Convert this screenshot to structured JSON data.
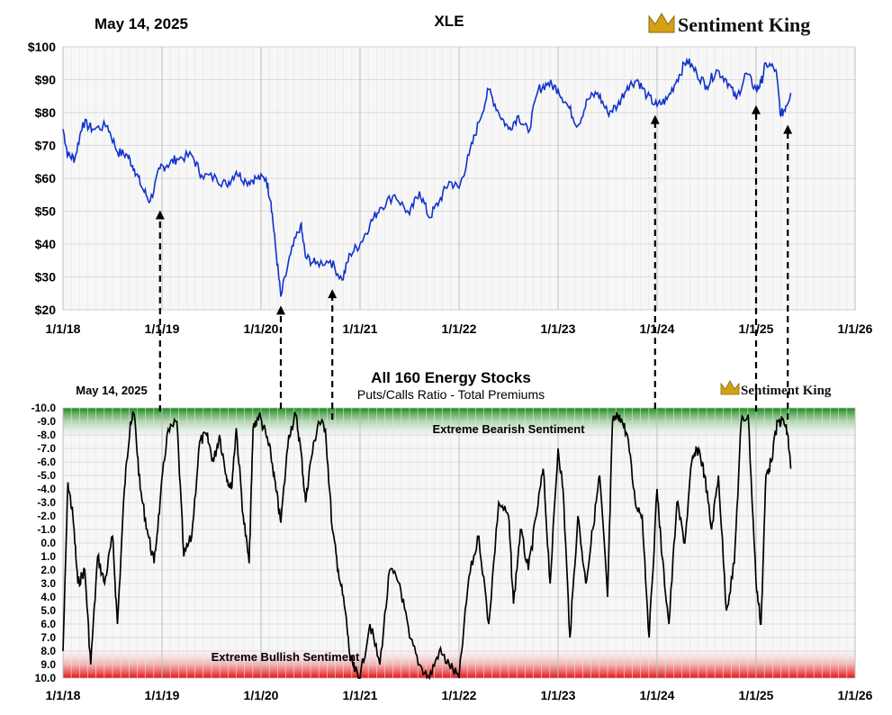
{
  "top_header": {
    "date": "May 14, 2025",
    "ticker": "XLE",
    "brand": "Sentiment King"
  },
  "bottom_header": {
    "date": "May 14, 2025",
    "title": "All 160 Energy Stocks",
    "subtitle": "Puts/Calls Ratio - Total Premiums",
    "brand": "Sentiment King",
    "zone_bearish": "Extreme Bearish Sentiment",
    "zone_bullish": "Extreme Bullish Sentiment"
  },
  "colors": {
    "price_line": "#1133cc",
    "ratio_line": "#000000",
    "bearish_zone": "#1e8c1e",
    "bullish_zone": "#e01010",
    "brand_crown": "#d4a017"
  },
  "chart_data": [
    {
      "type": "line",
      "x_tick_labels": [
        "1/1/18",
        "1/1/19",
        "1/1/20",
        "1/1/21",
        "1/1/22",
        "1/1/23",
        "1/1/24",
        "1/1/25",
        "1/1/26"
      ],
      "y_tick_labels": [
        "$100",
        "$90",
        "$80",
        "$70",
        "$60",
        "$50",
        "$40",
        "$30",
        "$20"
      ],
      "ylim": [
        20,
        100
      ],
      "xlim": [
        2018.0,
        2026.0
      ],
      "grid": true,
      "series": [
        {
          "x": [
            2018.0,
            2018.05,
            2018.12,
            2018.2,
            2018.3,
            2018.45,
            2018.55,
            2018.65,
            2018.72,
            2018.8,
            2018.88,
            2018.98,
            2019.05,
            2019.15,
            2019.3,
            2019.4,
            2019.55,
            2019.65,
            2019.75,
            2019.85,
            2019.95,
            2020.05,
            2020.1,
            2020.15,
            2020.2,
            2020.3,
            2020.4,
            2020.45,
            2020.55,
            2020.7,
            2020.82,
            2020.9,
            2021.0,
            2021.1,
            2021.2,
            2021.35,
            2021.5,
            2021.6,
            2021.7,
            2021.8,
            2021.9,
            2022.0,
            2022.1,
            2022.2,
            2022.3,
            2022.4,
            2022.5,
            2022.6,
            2022.7,
            2022.8,
            2022.9,
            2023.0,
            2023.1,
            2023.2,
            2023.3,
            2023.4,
            2023.5,
            2023.6,
            2023.7,
            2023.8,
            2023.9,
            2024.0,
            2024.1,
            2024.2,
            2024.3,
            2024.4,
            2024.5,
            2024.6,
            2024.7,
            2024.8,
            2024.9,
            2025.0,
            2025.05,
            2025.1,
            2025.2,
            2025.25,
            2025.3,
            2025.35
          ],
          "y": [
            75,
            67,
            66,
            77,
            75,
            76,
            68,
            67,
            63,
            57,
            53,
            63,
            64,
            66,
            67,
            61,
            60,
            58,
            62,
            59,
            60,
            60,
            53,
            38,
            24,
            37,
            46,
            36,
            34,
            35,
            29,
            37,
            40,
            46,
            51,
            55,
            49,
            56,
            48,
            53,
            59,
            57,
            67,
            77,
            87,
            80,
            75,
            79,
            74,
            87,
            89,
            87,
            82,
            76,
            84,
            86,
            80,
            82,
            88,
            90,
            85,
            82,
            84,
            90,
            96,
            92,
            88,
            93,
            90,
            84,
            92,
            87,
            89,
            95,
            93,
            79,
            82,
            86
          ]
        }
      ]
    },
    {
      "type": "line",
      "x_tick_labels": [
        "1/1/18",
        "1/1/19",
        "1/1/20",
        "1/1/21",
        "1/1/22",
        "1/1/23",
        "1/1/24",
        "1/1/25",
        "1/1/26"
      ],
      "y_tick_labels": [
        "-10.0",
        "-9.0",
        "-8.0",
        "-7.0",
        "-6.0",
        "-5.0",
        "-4.0",
        "-3.0",
        "-2.0",
        "-1.0",
        "0.0",
        "1.0",
        "2.0",
        "3.0",
        "4.0",
        "5.0",
        "6.0",
        "7.0",
        "8.0",
        "9.0",
        "10.0"
      ],
      "ylim": [
        -10,
        10
      ],
      "xlim": [
        2018.0,
        2026.0
      ],
      "grid": true,
      "series": [
        {
          "x": [
            2018.0,
            2018.05,
            2018.1,
            2018.15,
            2018.22,
            2018.28,
            2018.35,
            2018.42,
            2018.5,
            2018.55,
            2018.62,
            2018.68,
            2018.72,
            2018.78,
            2018.85,
            2018.92,
            2018.98,
            2019.05,
            2019.15,
            2019.22,
            2019.3,
            2019.38,
            2019.45,
            2019.52,
            2019.58,
            2019.65,
            2019.7,
            2019.75,
            2019.82,
            2019.88,
            2019.92,
            2019.98,
            2020.05,
            2020.1,
            2020.15,
            2020.2,
            2020.28,
            2020.35,
            2020.4,
            2020.45,
            2020.5,
            2020.58,
            2020.65,
            2020.72,
            2020.78,
            2020.85,
            2020.9,
            2020.95,
            2021.0,
            2021.1,
            2021.2,
            2021.3,
            2021.4,
            2021.5,
            2021.6,
            2021.7,
            2021.8,
            2021.9,
            2022.0,
            2022.1,
            2022.2,
            2022.3,
            2022.4,
            2022.5,
            2022.55,
            2022.62,
            2022.7,
            2022.78,
            2022.85,
            2022.92,
            2023.0,
            2023.05,
            2023.12,
            2023.2,
            2023.28,
            2023.35,
            2023.42,
            2023.5,
            2023.55,
            2023.62,
            2023.7,
            2023.78,
            2023.85,
            2023.92,
            2024.0,
            2024.05,
            2024.12,
            2024.2,
            2024.28,
            2024.35,
            2024.42,
            2024.48,
            2024.55,
            2024.62,
            2024.7,
            2024.78,
            2024.85,
            2024.92,
            2025.0,
            2025.05,
            2025.1,
            2025.15,
            2025.22,
            2025.28,
            2025.32,
            2025.35
          ],
          "y": [
            8,
            -4.5,
            -2,
            3,
            2,
            9,
            1,
            3,
            -0.5,
            6,
            -4,
            -9,
            -9.5,
            -4,
            -1,
            1.5,
            -3,
            -8,
            -9,
            1,
            -0.5,
            -7.5,
            -8,
            -6,
            -8,
            -5,
            -4,
            -8.5,
            -2,
            1.5,
            -8.5,
            -9.5,
            -8,
            -6.5,
            -4,
            -1.5,
            -8,
            -9.5,
            -7,
            -3,
            -6,
            -9,
            -8.5,
            -1,
            2,
            5,
            8.5,
            9.5,
            10,
            6,
            9,
            2,
            3,
            7,
            9,
            10,
            8,
            9,
            10,
            2.5,
            -0.5,
            6,
            -3,
            -2,
            4.5,
            -1,
            2,
            -2,
            -5.5,
            3,
            -7,
            -4,
            7,
            -2,
            3,
            -1,
            -5,
            4,
            -9,
            -9.5,
            -8,
            -3,
            -2,
            7,
            -4,
            1,
            6,
            -3,
            0,
            -6,
            -7,
            -5,
            -1,
            -5,
            5,
            1.5,
            -9,
            -9.5,
            3,
            6,
            -5,
            -6,
            -9,
            -9,
            -8,
            -5.5
          ]
        }
      ]
    }
  ]
}
